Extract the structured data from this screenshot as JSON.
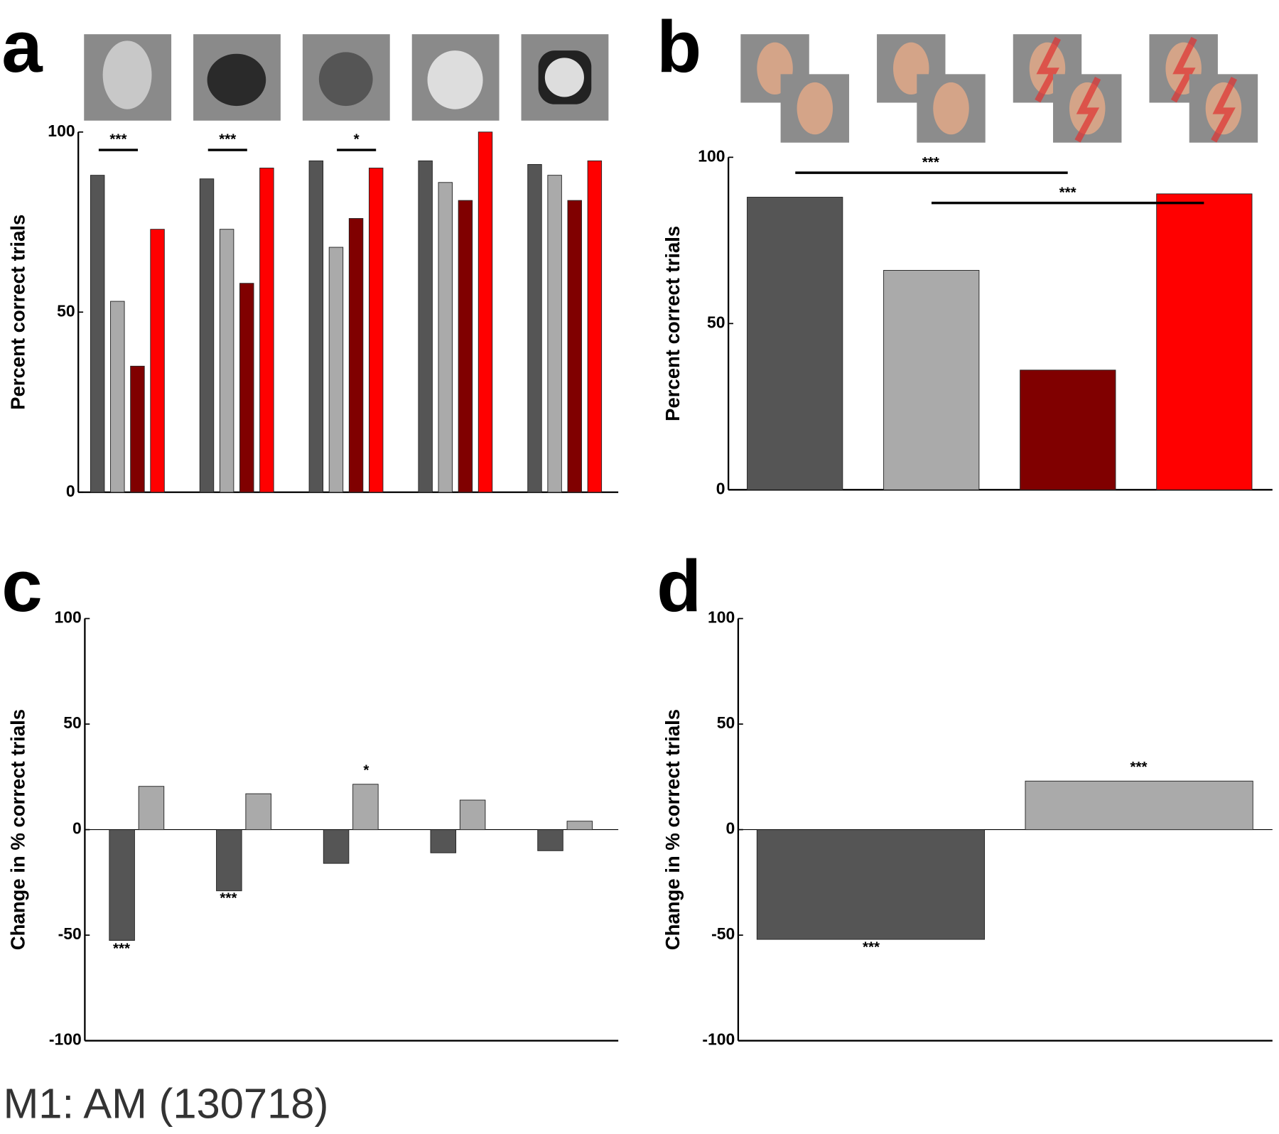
{
  "caption": "M1: AM (130718)",
  "chart_data": [
    {
      "type": "bar",
      "panel_label": "a",
      "y_label": "Percent correct trials",
      "categories": [
        null,
        null,
        null,
        null,
        null
      ],
      "series": [
        {
          "color": "#555555",
          "values": [
            88,
            87,
            92,
            92,
            91
          ]
        },
        {
          "color": "#aaaaaa",
          "values": [
            53,
            73,
            68,
            86,
            88
          ]
        },
        {
          "color": "#800000",
          "values": [
            35,
            58,
            76,
            81,
            81
          ]
        },
        {
          "color": "#ff0000",
          "values": [
            73,
            90,
            90,
            100,
            92
          ]
        }
      ],
      "ylim": [
        0,
        100
      ],
      "yticks": [
        0,
        50,
        100
      ],
      "annotations": [
        "***",
        "***",
        "*"
      ]
    },
    {
      "type": "bar",
      "panel_label": "b",
      "y_label": "Percent correct trials",
      "categories": [
        null
      ],
      "series": [
        {
          "color": "#555555",
          "values": [
            88
          ]
        },
        {
          "color": "#aaaaaa",
          "values": [
            66
          ]
        },
        {
          "color": "#800000",
          "values": [
            36
          ]
        },
        {
          "color": "#ff0000",
          "values": [
            89
          ]
        }
      ],
      "ylim": [
        0,
        100
      ],
      "yticks": [
        0,
        50,
        100
      ],
      "annotations": [
        "***",
        "***"
      ]
    },
    {
      "type": "bar",
      "panel_label": "c",
      "y_label": "Change in % correct trials",
      "categories": [
        null,
        null,
        null,
        null,
        null
      ],
      "series": [
        {
          "color": "#555555",
          "values": [
            -52.5,
            -29,
            -16,
            -11,
            -10
          ]
        },
        {
          "color": "#aaaaaa",
          "values": [
            20.5,
            17,
            21.5,
            14,
            4
          ]
        }
      ],
      "ylim": [
        -100,
        100
      ],
      "yticks": [
        -100,
        -50,
        0,
        50,
        100
      ],
      "annotations": [
        "***",
        "***",
        "*"
      ]
    },
    {
      "type": "bar",
      "panel_label": "d",
      "y_label": "Change in % correct trials",
      "categories": [
        null
      ],
      "series": [
        {
          "color": "#555555",
          "values": [
            -52
          ]
        },
        {
          "color": "#aaaaaa",
          "values": [
            23
          ]
        }
      ],
      "ylim": [
        -100,
        100
      ],
      "yticks": [
        -100,
        -50,
        0,
        50,
        100
      ],
      "annotations": [
        "***",
        "***"
      ]
    }
  ]
}
